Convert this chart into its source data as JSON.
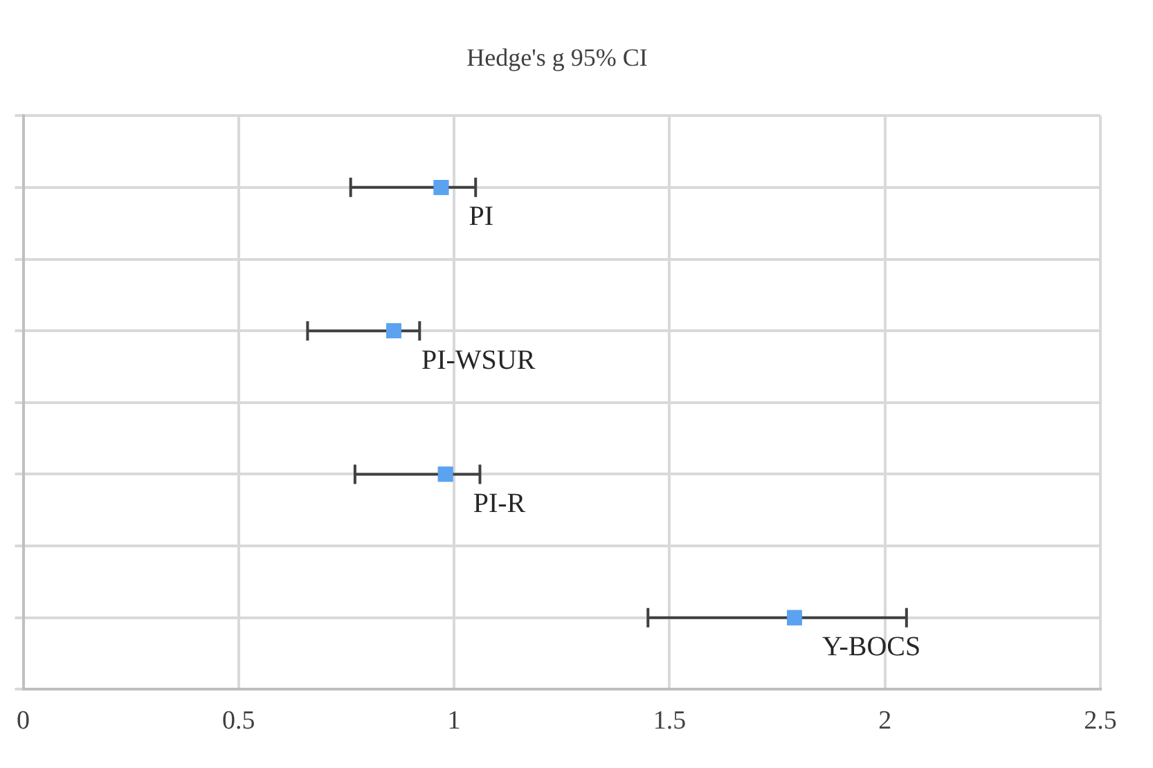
{
  "chart_data": {
    "type": "scatter",
    "orientation": "horizontal",
    "title": "Hedge's g 95% CI",
    "categories": [
      "PI",
      "PI-WSUR",
      "PI-R",
      "Y-BOCS"
    ],
    "values": [
      0.97,
      0.86,
      0.98,
      1.79
    ],
    "errors": [
      [
        0.76,
        1.05
      ],
      [
        0.66,
        0.92
      ],
      [
        0.77,
        1.06
      ],
      [
        1.45,
        2.05
      ]
    ],
    "color": "#5ba3f0",
    "marker": "square",
    "xlim": [
      0,
      2.5
    ],
    "xticks": [
      0,
      0.5,
      1,
      1.5,
      2,
      2.5
    ],
    "grid": true,
    "tick_labels": "x"
  }
}
